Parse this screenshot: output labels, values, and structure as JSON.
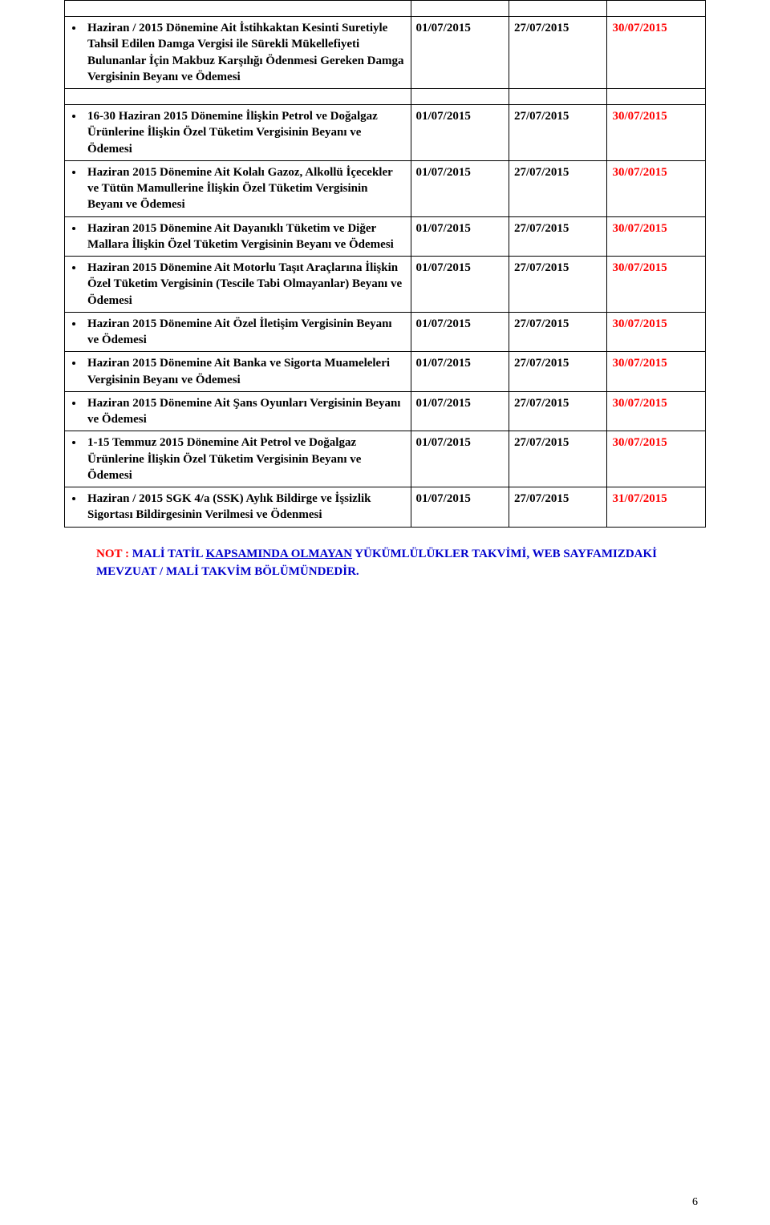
{
  "colors": {
    "text": "#000000",
    "red": "#ff0000",
    "blue": "#0000cc",
    "border": "#000000",
    "background": "#ffffff"
  },
  "table": {
    "col_widths_pct": [
      54,
      15.33,
      15.33,
      15.33
    ],
    "font_size_pt": 11,
    "rows": [
      {
        "type": "empty"
      },
      {
        "desc": "Haziran / 2015 Dönemine Ait İstihkaktan Kesinti Suretiyle Tahsil Edilen Damga Vergisi ile Sürekli Mükellefiyeti Bulunanlar İçin Makbuz Karşılığı Ödenmesi Gereken Damga Vergisinin Beyanı ve Ödemesi",
        "d1": "01/07/2015",
        "d2": "27/07/2015",
        "d3": "30/07/2015"
      },
      {
        "type": "empty"
      },
      {
        "desc": "16-30 Haziran 2015 Dönemine İlişkin Petrol ve Doğalgaz Ürünlerine İlişkin Özel Tüketim Vergisinin Beyanı ve Ödemesi",
        "d1": "01/07/2015",
        "d2": "27/07/2015",
        "d3": "30/07/2015"
      },
      {
        "desc": "Haziran 2015 Dönemine Ait Kolalı Gazoz, Alkollü İçecekler ve Tütün Mamullerine İlişkin Özel Tüketim Vergisinin Beyanı ve Ödemesi",
        "d1": "01/07/2015",
        "d2": "27/07/2015",
        "d3": "30/07/2015"
      },
      {
        "desc": "Haziran 2015 Dönemine Ait Dayanıklı Tüketim ve Diğer Mallara İlişkin Özel Tüketim Vergisinin Beyanı ve Ödemesi",
        "d1": "01/07/2015",
        "d2": "27/07/2015",
        "d3": "30/07/2015"
      },
      {
        "desc": "Haziran 2015 Dönemine Ait Motorlu Taşıt Araçlarına İlişkin Özel Tüketim Vergisinin (Tescile Tabi Olmayanlar) Beyanı ve Ödemesi",
        "d1": "01/07/2015",
        "d2": "27/07/2015",
        "d3": "30/07/2015"
      },
      {
        "desc": "Haziran 2015 Dönemine Ait Özel İletişim Vergisinin Beyanı ve Ödemesi",
        "d1": "01/07/2015",
        "d2": "27/07/2015",
        "d3": "30/07/2015"
      },
      {
        "desc": "Haziran 2015 Dönemine Ait Banka ve Sigorta Muameleleri Vergisinin Beyanı ve Ödemesi",
        "d1": "01/07/2015",
        "d2": "27/07/2015",
        "d3": "30/07/2015"
      },
      {
        "desc": "Haziran 2015 Dönemine Ait Şans Oyunları Vergisinin Beyanı ve Ödemesi",
        "d1": "01/07/2015",
        "d2": "27/07/2015",
        "d3": "30/07/2015"
      },
      {
        "desc": "1-15 Temmuz 2015 Dönemine Ait Petrol ve Doğalgaz Ürünlerine İlişkin Özel Tüketim Vergisinin Beyanı ve Ödemesi",
        "d1": "01/07/2015",
        "d2": "27/07/2015",
        "d3": "30/07/2015"
      },
      {
        "desc": "Haziran / 2015 SGK 4/a (SSK) Aylık Bildirge ve İşsizlik Sigortası Bildirgesinin Verilmesi ve Ödenmesi",
        "d1": "01/07/2015",
        "d2": "27/07/2015",
        "d3": "31/07/2015"
      }
    ]
  },
  "note": {
    "label": "NOT :",
    "blue_part_prefix": "MALİ TATİL ",
    "blue_part_underlined": "KAPSAMINDA OLMAYAN",
    "blue_part_suffix": " YÜKÜMLÜLÜKLER TAKVİMİ, WEB    SAYFAMIZDAKİ MEVZUAT / MALİ TAKVİM BÖLÜMÜNDEDİR."
  },
  "page_number": "6"
}
